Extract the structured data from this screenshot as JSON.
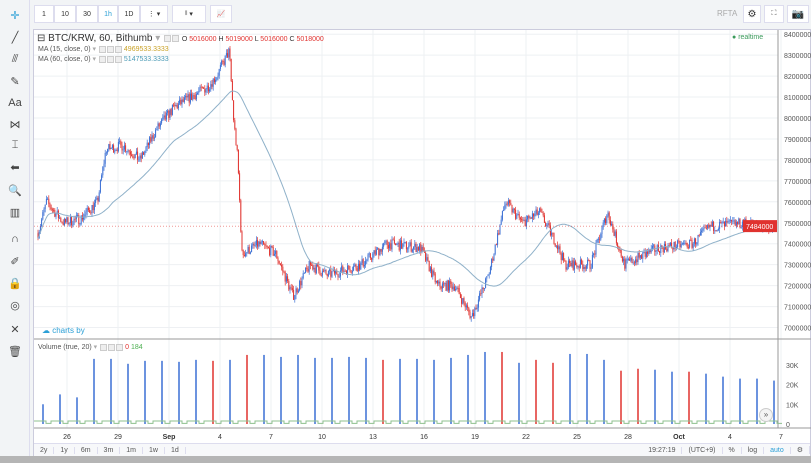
{
  "left_toolbar": [
    {
      "name": "crosshair-icon",
      "glyph": "✛"
    },
    {
      "name": "trend-line-icon",
      "glyph": "╱"
    },
    {
      "name": "fib-icon",
      "glyph": "⫻"
    },
    {
      "name": "brush-icon",
      "glyph": "✎"
    },
    {
      "name": "text-icon",
      "glyph": "Aa"
    },
    {
      "name": "pattern-icon",
      "glyph": "⋈"
    },
    {
      "name": "prediction-icon",
      "glyph": "⌶"
    },
    {
      "name": "arrow-left-icon",
      "glyph": "⬅"
    },
    {
      "name": "zoom-icon",
      "glyph": "🔍"
    },
    {
      "name": "measure-icon",
      "glyph": "▥"
    },
    {
      "name": "magnet-icon",
      "glyph": "∩"
    },
    {
      "name": "stay-drawing-icon",
      "glyph": "✐"
    },
    {
      "name": "lock-icon",
      "glyph": "🔒"
    },
    {
      "name": "eye-icon",
      "glyph": "◎"
    },
    {
      "name": "remove-tools-icon",
      "glyph": "✕"
    },
    {
      "name": "trash-icon",
      "glyph": "🗑"
    }
  ],
  "top_toolbar": {
    "intervals": [
      "1",
      "10",
      "30",
      "1h",
      "1D"
    ],
    "active_interval": "1h",
    "brand": "RFTA"
  },
  "legend": {
    "symbol": "BTC/KRW, 60, Bithumb",
    "o_label": "O",
    "o": "5016000",
    "h_label": "H",
    "h": "5019000",
    "l_label": "L",
    "l": "5016000",
    "c_label": "C",
    "c": "5018000",
    "ma15_label": "MA (15, close, 0)",
    "ma15_value": "4969533.3333",
    "ma60_label": "MA (60, close, 0)",
    "ma60_value": "5147533.3333",
    "volume_label": "Volume (true, 20)",
    "volume_v1": "0",
    "volume_v2": "184"
  },
  "realtime_label": "realtime",
  "charts_by": "charts by",
  "colors": {
    "up": "#3b6fd4",
    "down": "#e0322f",
    "ma15": "#c9a227",
    "ma60": "#8fb1c9",
    "vol_ma": "#8fc08f",
    "accent": "#2a9fd6"
  },
  "chart_data": {
    "type": "candlestick",
    "price_ylim": [
      6950000,
      8420000
    ],
    "price_ticks": [
      "8400000",
      "8300000",
      "8200000",
      "8100000",
      "8000000",
      "7900000",
      "7800000",
      "7700000",
      "7600000",
      "7500000",
      "7400000",
      "7300000",
      "7200000",
      "7100000",
      "7000000"
    ],
    "last_price": "7484000",
    "x_ticks": [
      "26",
      "29",
      "Sep",
      "4",
      "7",
      "10",
      "13",
      "16",
      "19",
      "22",
      "25",
      "28",
      "Oct",
      "4",
      "7"
    ],
    "close_path": [
      [
        "08-25 00",
        7450000
      ],
      [
        "08-25 12",
        7600000
      ],
      [
        "08-26 12",
        7500000
      ],
      [
        "08-27 12",
        7520000
      ],
      [
        "08-28 12",
        7600000
      ],
      [
        "08-29 00",
        7850000
      ],
      [
        "08-30 00",
        7870000
      ],
      [
        "08-31 00",
        7800000
      ],
      [
        "09-01 00",
        7950000
      ],
      [
        "09-02 00",
        8050000
      ],
      [
        "09-03 00",
        8100000
      ],
      [
        "09-04 00",
        8150000
      ],
      [
        "09-04 12",
        8200000
      ],
      [
        "09-05 06",
        8320000
      ],
      [
        "09-05 12",
        8000000
      ],
      [
        "09-05 18",
        7800000
      ],
      [
        "09-06 00",
        7350000
      ],
      [
        "09-07 00",
        7400000
      ],
      [
        "09-08 00",
        7350000
      ],
      [
        "09-09 00",
        7150000
      ],
      [
        "09-10 00",
        7300000
      ],
      [
        "09-11 00",
        7250000
      ],
      [
        "09-13 00",
        7300000
      ],
      [
        "09-14 12",
        7400000
      ],
      [
        "09-16 12",
        7380000
      ],
      [
        "09-17 12",
        7200000
      ],
      [
        "09-18 12",
        7200000
      ],
      [
        "09-19 12",
        7050000
      ],
      [
        "09-20 12",
        7250000
      ],
      [
        "09-21 12",
        7600000
      ],
      [
        "09-22 12",
        7500000
      ],
      [
        "09-23 12",
        7550000
      ],
      [
        "09-24 12",
        7400000
      ],
      [
        "09-25 00",
        7300000
      ],
      [
        "09-26 12",
        7300000
      ],
      [
        "09-27 12",
        7550000
      ],
      [
        "09-28 12",
        7300000
      ],
      [
        "09-30 12",
        7380000
      ],
      [
        "10-02 12",
        7400000
      ],
      [
        "10-03 12",
        7480000
      ],
      [
        "10-05 12",
        7500000
      ],
      [
        "10-06 12",
        7480000
      ]
    ],
    "volume_ylim": [
      0,
      38000
    ],
    "volume_ticks": [
      "30K",
      "20K",
      "10K",
      "0"
    ],
    "volume": [
      [
        "up",
        10000
      ],
      [
        "up",
        15000
      ],
      [
        "up",
        13500
      ],
      [
        "up",
        33000
      ],
      [
        "up",
        33000
      ],
      [
        "up",
        30500
      ],
      [
        "up",
        32000
      ],
      [
        "up",
        32000
      ],
      [
        "up",
        31500
      ],
      [
        "up",
        32500
      ],
      [
        "down",
        32000
      ],
      [
        "up",
        32500
      ],
      [
        "down",
        35000
      ],
      [
        "up",
        35000
      ],
      [
        "up",
        34000
      ],
      [
        "up",
        35000
      ],
      [
        "up",
        33500
      ],
      [
        "up",
        33500
      ],
      [
        "up",
        34000
      ],
      [
        "up",
        33500
      ],
      [
        "down",
        32500
      ],
      [
        "up",
        33000
      ],
      [
        "up",
        33000
      ],
      [
        "up",
        32500
      ],
      [
        "up",
        33500
      ],
      [
        "up",
        35000
      ],
      [
        "up",
        36500
      ],
      [
        "down",
        36500
      ],
      [
        "up",
        31000
      ],
      [
        "down",
        32500
      ],
      [
        "down",
        31000
      ],
      [
        "up",
        35500
      ],
      [
        "up",
        35500
      ],
      [
        "up",
        32500
      ],
      [
        "down",
        27000
      ],
      [
        "down",
        28000
      ],
      [
        "up",
        27500
      ],
      [
        "up",
        26500
      ],
      [
        "down",
        26500
      ],
      [
        "up",
        25500
      ],
      [
        "up",
        24000
      ],
      [
        "up",
        23000
      ],
      [
        "up",
        23000
      ],
      [
        "up",
        22000
      ]
    ]
  },
  "bottom_bar": {
    "ranges": [
      "2y",
      "1y",
      "6m",
      "3m",
      "1m",
      "1w",
      "1d"
    ],
    "time": "19:27:19",
    "tz": "(UTC+9)",
    "percent": "%",
    "log": "log",
    "auto": "auto"
  }
}
